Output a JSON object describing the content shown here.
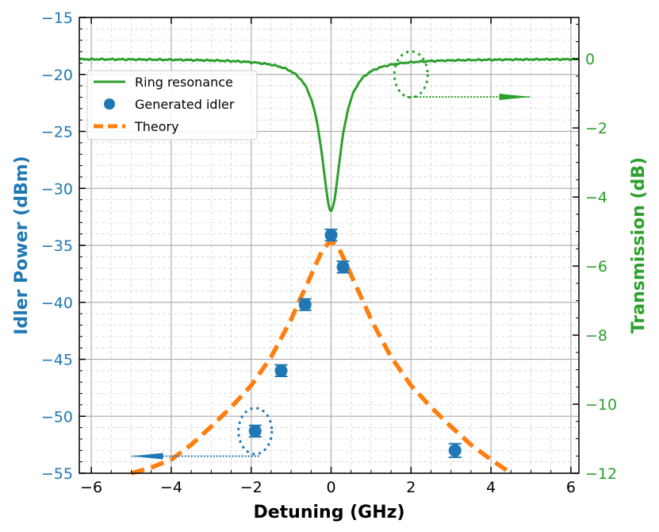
{
  "chart_data": {
    "type": "line",
    "title": "",
    "xlabel": "Detuning (GHz)",
    "ylabel_left": "Idler Power (dBm)",
    "ylabel_right": "Transmission (dB)",
    "xlim": [
      -6.3,
      6.2
    ],
    "ylim_left": [
      -55,
      -15
    ],
    "ylim_right": [
      -12,
      1.2
    ],
    "xticks": [
      -6,
      -4,
      -2,
      0,
      2,
      4,
      6
    ],
    "xtick_labels": [
      "−6",
      "−4",
      "−2",
      "0",
      "2",
      "4",
      "6"
    ],
    "yticks_left": [
      -55,
      -50,
      -45,
      -40,
      -35,
      -30,
      -25,
      -20,
      -15
    ],
    "ytick_labels_left": [
      "−55",
      "−50",
      "−45",
      "−40",
      "−35",
      "−30",
      "−25",
      "−20",
      "−15"
    ],
    "yticks_right": [
      -12,
      -10,
      -8,
      -6,
      -4,
      -2,
      0
    ],
    "ytick_labels_right": [
      "−12",
      "−10",
      "−8",
      "−6",
      "−4",
      "−2",
      "0"
    ],
    "grid": true,
    "legend_position": "upper-left",
    "colors": {
      "idler": "#1f77b4",
      "ring": "#2ca02c",
      "theory": "#ff7f0e",
      "grid": "#b0b0b0"
    },
    "series": [
      {
        "name": "Ring resonance",
        "axis": "right",
        "style": "solid",
        "model": "lorentzian",
        "baseline_db": 0,
        "depth_db": -4.4,
        "center_ghz": 0,
        "half_width_ghz": 0.3
      },
      {
        "name": "Generated idler",
        "axis": "left",
        "style": "markers",
        "x": [
          -1.9,
          -1.25,
          -0.65,
          0.0,
          0.3,
          3.1
        ],
        "y": [
          -51.3,
          -46.0,
          -40.2,
          -34.1,
          -36.9,
          -53.0
        ],
        "yerr": [
          0.5,
          0.5,
          0.5,
          0.5,
          0.5,
          0.6
        ]
      },
      {
        "name": "Theory",
        "axis": "left",
        "style": "dashed",
        "x": [
          -5.0,
          -4.5,
          -4.0,
          -3.5,
          -3.0,
          -2.5,
          -2.0,
          -1.5,
          -1.0,
          -0.8,
          -0.6,
          -0.4,
          -0.2,
          0.0,
          0.2,
          0.4,
          0.6,
          0.8,
          1.0,
          1.5,
          2.0,
          2.5,
          3.0,
          3.5,
          4.0,
          4.5
        ],
        "y": [
          -55.0,
          -54.5,
          -53.8,
          -52.5,
          -50.9,
          -49.2,
          -47.3,
          -44.8,
          -41.5,
          -39.9,
          -38.4,
          -36.8,
          -35.3,
          -34.6,
          -35.3,
          -36.8,
          -38.4,
          -39.9,
          -41.5,
          -44.8,
          -47.3,
          -49.2,
          -50.9,
          -52.5,
          -53.8,
          -55.0
        ]
      }
    ],
    "annotations": [
      {
        "target_axis": "right",
        "ellipse_center": [
          2.0,
          -0.45
        ],
        "arrow_from": [
          1.9,
          -1.1
        ],
        "arrow_to": [
          5.0,
          -1.1
        ]
      },
      {
        "target_axis": "left",
        "ellipse_center": [
          -1.9,
          -51.3
        ],
        "arrow_from": [
          -1.8,
          -53.5
        ],
        "arrow_to": [
          -5.0,
          -53.5
        ]
      }
    ]
  }
}
